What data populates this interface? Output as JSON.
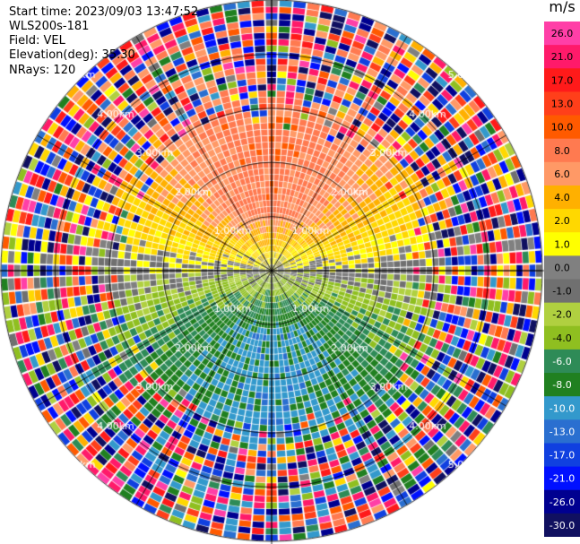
{
  "header": {
    "start_time": "Start time: 2023/09/03 13:47:52",
    "instrument": "WLS200s-181",
    "field": "Field: VEL",
    "elevation": "Elevation(deg): 35.30",
    "nrays": "NRays: 120"
  },
  "colorbar": {
    "unit": "m/s",
    "ticks": [
      "26.0",
      "21.0",
      "17.0",
      "13.0",
      "10.0",
      "8.0",
      "6.0",
      "4.0",
      "2.0",
      "1.0",
      "0.0",
      "-1.0",
      "-2.0",
      "-4.0",
      "-6.0",
      "-8.0",
      "-10.0",
      "-13.0",
      "-17.0",
      "-21.0",
      "-26.0",
      "-30.0"
    ],
    "colors": [
      "#ff3fa7",
      "#ff1a6a",
      "#ff1a1a",
      "#ff3f1a",
      "#ff5a00",
      "#ff7a50",
      "#ff9966",
      "#ffb000",
      "#ffd800",
      "#ffff00",
      "#808080",
      "#707070",
      "#b0d040",
      "#8fbf20",
      "#2e8b57",
      "#208020",
      "#3399cc",
      "#2a6fd0",
      "#1040e0",
      "#0010ff",
      "#000090",
      "#101060"
    ]
  },
  "chart_data": {
    "type": "ppi",
    "title": "",
    "field": "VEL",
    "units": "m/s",
    "nrays": 120,
    "elevation_deg": 35.3,
    "range_rings_km": [
      1.0,
      2.0,
      3.0,
      4.0,
      5.0
    ],
    "ring_labels": [
      "1.00km",
      "2.00km",
      "3.00km",
      "4.00km",
      "5.00km"
    ],
    "vmin": -30.0,
    "vmax": 26.0,
    "bins_per_ray": 42,
    "pattern": "toward sensor (negative, blue) in south sector, away (positive, orange/red) in north sector, noisy beyond ~3 km",
    "grid": true
  }
}
